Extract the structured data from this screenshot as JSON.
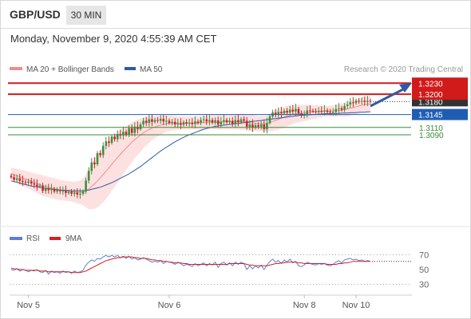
{
  "header": {
    "symbol": "GBP/USD",
    "timeframe": "30 MIN",
    "datetime": "Monday, November 9, 2020 4:55:39 AM CET"
  },
  "legend": {
    "ma20_label": "MA 20 + Bollinger Bands",
    "ma50_label": "MA 50",
    "credit": "Research © 2020 Trading Central",
    "rsi_label": "RSI",
    "rsi_ma_label": "9MA"
  },
  "colors": {
    "resistance": "#d11a1a",
    "support": "#1f5db3",
    "target": "#3a8a3a",
    "bull": "#3f8f3f",
    "bear": "#c62828",
    "ma20": "#f28b8b",
    "ma50": "#2f5aa8",
    "band_fill": "#fde1e1",
    "rsi": "#5b7fd6",
    "rsi_ma": "#d71f1f",
    "last_price_tag": "#333333",
    "arrow": "#2f5aa8"
  },
  "chart_data": [
    {
      "type": "candlestick",
      "name": "price",
      "ylim": [
        1.285,
        1.325
      ],
      "x_ticks": [
        {
          "label": "Nov 5",
          "index": 6
        },
        {
          "label": "Nov 6",
          "index": 55
        },
        {
          "label": "Nov 8",
          "index": 102
        },
        {
          "label": "Nov 10",
          "index": 120
        }
      ],
      "levels": [
        {
          "value": 1.323,
          "label": "1.3230",
          "kind": "resistance"
        },
        {
          "value": 1.32,
          "label": "1.3200",
          "kind": "resistance"
        },
        {
          "value": 1.3145,
          "label": "1.3145",
          "kind": "support"
        },
        {
          "value": 1.311,
          "label": "1.3110",
          "kind": "target"
        },
        {
          "value": 1.309,
          "label": "1.3090",
          "kind": "target"
        }
      ],
      "last_price": {
        "value": 1.318,
        "label": "1.3180"
      },
      "closes": [
        1.2975,
        1.2968,
        1.2972,
        1.2965,
        1.2962,
        1.296,
        1.2963,
        1.2958,
        1.2955,
        1.295,
        1.2952,
        1.2938,
        1.2945,
        1.294,
        1.2943,
        1.2936,
        1.294,
        1.2937,
        1.2938,
        1.2932,
        1.2935,
        1.293,
        1.2933,
        1.2928,
        1.293,
        1.2936,
        1.2966,
        1.2992,
        1.3015,
        1.301,
        1.304,
        1.3035,
        1.306,
        1.3072,
        1.3068,
        1.3085,
        1.3078,
        1.3092,
        1.3088,
        1.3098,
        1.309,
        1.3108,
        1.3095,
        1.3112,
        1.3105,
        1.3118,
        1.3128,
        1.3122,
        1.3132,
        1.3125,
        1.313,
        1.3128,
        1.3133,
        1.3126,
        1.3128,
        1.3122,
        1.3125,
        1.3118,
        1.3121,
        1.3117,
        1.3124,
        1.312,
        1.3123,
        1.3119,
        1.3126,
        1.3122,
        1.313,
        1.3132,
        1.3126,
        1.313,
        1.3123,
        1.3129,
        1.3118,
        1.3126,
        1.313,
        1.3124,
        1.3128,
        1.312,
        1.313,
        1.3124,
        1.3132,
        1.3128,
        1.3112,
        1.3118,
        1.3109,
        1.3116,
        1.3112,
        1.3118,
        1.3105,
        1.3122,
        1.314,
        1.315,
        1.3145,
        1.3152,
        1.3148,
        1.3155,
        1.315,
        1.3158,
        1.3153,
        1.316,
        1.3148,
        1.3142,
        1.3146,
        1.3156,
        1.3155,
        1.3154,
        1.3152,
        1.3155,
        1.3154,
        1.3156,
        1.3152,
        1.315,
        1.3152,
        1.316,
        1.3162,
        1.3158,
        1.3168,
        1.3172,
        1.3178,
        1.3176,
        1.3182,
        1.318,
        1.3182,
        1.3179,
        1.3182,
        1.318
      ],
      "ma20": [
        1.2985,
        1.2982,
        1.2979,
        1.2976,
        1.2973,
        1.297,
        1.2967,
        1.2964,
        1.2961,
        1.2958,
        1.2955,
        1.2952,
        1.295,
        1.2948,
        1.2946,
        1.2944,
        1.2942,
        1.294,
        1.2939,
        1.2938,
        1.2937,
        1.2936,
        1.2935,
        1.2934,
        1.2934,
        1.2935,
        1.2938,
        1.2943,
        1.295,
        1.2957,
        1.2965,
        1.2973,
        1.2982,
        1.2991,
        1.3,
        1.301,
        1.3019,
        1.3028,
        1.3037,
        1.3046,
        1.3054,
        1.3062,
        1.307,
        1.3077,
        1.3083,
        1.3089,
        1.3095,
        1.31,
        1.3104,
        1.3108,
        1.3111,
        1.3114,
        1.3116,
        1.3118,
        1.312,
        1.3121,
        1.3122,
        1.3122,
        1.3122,
        1.3122,
        1.3122,
        1.3122,
        1.3122,
        1.3122,
        1.3122,
        1.3122,
        1.3123,
        1.3123,
        1.3123,
        1.3124,
        1.3124,
        1.3124,
        1.3124,
        1.3124,
        1.3125,
        1.3125,
        1.3125,
        1.3125,
        1.3125,
        1.3125,
        1.3125,
        1.3125,
        1.3124,
        1.3123,
        1.3122,
        1.3121,
        1.312,
        1.312,
        1.312,
        1.3121,
        1.3123,
        1.3126,
        1.3129,
        1.3132,
        1.3135,
        1.3138,
        1.3141,
        1.3143,
        1.3145,
        1.3147,
        1.3148,
        1.3148,
        1.3149,
        1.315,
        1.3151,
        1.3152,
        1.3152,
        1.3153,
        1.3153,
        1.3154,
        1.3154,
        1.3154,
        1.3155,
        1.3155,
        1.3156,
        1.3157,
        1.3158,
        1.316,
        1.3162,
        1.3164,
        1.3166,
        1.3168,
        1.317,
        1.3172,
        1.3173,
        1.3174
      ],
      "band_width": [
        0.0016,
        0.0018,
        0.0019,
        0.002,
        0.0021,
        0.0022,
        0.0023,
        0.0024,
        0.0025,
        0.0026,
        0.0027,
        0.0028,
        0.0028,
        0.0028,
        0.0028,
        0.0028,
        0.0028,
        0.0027,
        0.0027,
        0.0027,
        0.0027,
        0.0027,
        0.0028,
        0.003,
        0.0032,
        0.0036,
        0.0045,
        0.0055,
        0.0062,
        0.0068,
        0.0072,
        0.0074,
        0.0075,
        0.0075,
        0.0074,
        0.0072,
        0.007,
        0.0068,
        0.0066,
        0.0063,
        0.006,
        0.0057,
        0.0054,
        0.0051,
        0.0048,
        0.0045,
        0.0042,
        0.0039,
        0.0036,
        0.0033,
        0.003,
        0.0028,
        0.0026,
        0.0024,
        0.0022,
        0.0021,
        0.002,
        0.0019,
        0.0018,
        0.0018,
        0.0018,
        0.0018,
        0.0018,
        0.0018,
        0.0018,
        0.0018,
        0.0018,
        0.0018,
        0.0018,
        0.0018,
        0.0019,
        0.0019,
        0.002,
        0.002,
        0.002,
        0.002,
        0.002,
        0.002,
        0.0021,
        0.0021,
        0.0022,
        0.0022,
        0.0022,
        0.0022,
        0.0022,
        0.0021,
        0.0021,
        0.0021,
        0.0021,
        0.0022,
        0.0024,
        0.0026,
        0.0027,
        0.0028,
        0.0028,
        0.0028,
        0.0028,
        0.0027,
        0.0026,
        0.0025,
        0.0024,
        0.0023,
        0.0022,
        0.0021,
        0.002,
        0.0019,
        0.0018,
        0.0017,
        0.0016,
        0.0015,
        0.0015,
        0.0015,
        0.0015,
        0.0016,
        0.0017,
        0.0018,
        0.0019,
        0.002,
        0.002,
        0.002,
        0.002,
        0.002,
        0.002,
        0.002,
        0.002,
        0.002
      ],
      "ma50": [
        1.2965,
        1.2963,
        1.2961,
        1.2959,
        1.2957,
        1.2955,
        1.2953,
        1.2951,
        1.295,
        1.2949,
        1.2948,
        1.2946,
        1.2945,
        1.2944,
        1.2943,
        1.2942,
        1.2941,
        1.294,
        1.294,
        1.2939,
        1.2939,
        1.2938,
        1.2938,
        1.2938,
        1.2938,
        1.2938,
        1.2939,
        1.294,
        1.2942,
        1.2944,
        1.2946,
        1.2948,
        1.2951,
        1.2954,
        1.2957,
        1.296,
        1.2964,
        1.2968,
        1.2972,
        1.2976,
        1.298,
        1.2984,
        1.2989,
        1.2994,
        1.2999,
        1.3004,
        1.301,
        1.3016,
        1.3022,
        1.3028,
        1.3034,
        1.304,
        1.3046,
        1.3051,
        1.3056,
        1.3061,
        1.3066,
        1.3071,
        1.3075,
        1.3079,
        1.3083,
        1.3087,
        1.309,
        1.3093,
        1.3096,
        1.3099,
        1.3102,
        1.3105,
        1.3107,
        1.3109,
        1.3111,
        1.3113,
        1.3114,
        1.3115,
        1.3116,
        1.3117,
        1.3118,
        1.3119,
        1.312,
        1.3121,
        1.3122,
        1.3123,
        1.3124,
        1.3125,
        1.3126,
        1.3127,
        1.3128,
        1.3129,
        1.313,
        1.3131,
        1.3132,
        1.3133,
        1.3134,
        1.3135,
        1.3136,
        1.3137,
        1.3138,
        1.3139,
        1.314,
        1.3141,
        1.3142,
        1.3143,
        1.3143,
        1.3144,
        1.3144,
        1.3145,
        1.3145,
        1.3146,
        1.3146,
        1.3147,
        1.3147,
        1.3147,
        1.3148,
        1.3148,
        1.3148,
        1.3149,
        1.3149,
        1.3149,
        1.315,
        1.315,
        1.315,
        1.3151,
        1.3151,
        1.3151,
        1.3152,
        1.3152
      ]
    },
    {
      "type": "line",
      "name": "rsi",
      "ylim": [
        20,
        80
      ],
      "y_ticks": [
        70,
        50,
        30
      ],
      "series": [
        {
          "name": "RSI",
          "values": [
            50,
            49,
            51,
            48,
            50,
            49,
            47,
            49,
            48,
            50,
            47,
            46,
            49,
            44,
            48,
            46,
            47,
            45,
            48,
            46,
            47,
            45,
            48,
            46,
            47,
            49,
            56,
            60,
            63,
            61,
            65,
            64,
            67,
            69,
            67,
            69,
            67,
            69,
            66,
            68,
            65,
            68,
            64,
            66,
            63,
            64,
            66,
            64,
            62,
            60,
            61,
            60,
            62,
            58,
            61,
            60,
            59,
            57,
            60,
            58,
            55,
            57,
            56,
            54,
            58,
            55,
            57,
            59,
            55,
            58,
            56,
            60,
            53,
            58,
            60,
            56,
            59,
            55,
            60,
            57,
            60,
            58,
            50,
            55,
            51,
            55,
            52,
            56,
            50,
            56,
            61,
            64,
            60,
            62,
            58,
            63,
            60,
            64,
            59,
            61,
            55,
            54,
            56,
            60,
            58,
            57,
            56,
            58,
            57,
            58,
            56,
            55,
            57,
            60,
            62,
            59,
            63,
            64,
            65,
            63,
            64,
            62,
            63,
            61,
            62,
            61
          ]
        },
        {
          "name": "9MA",
          "values": [
            52,
            51,
            51,
            50,
            50,
            49,
            49,
            49,
            49,
            49,
            48,
            48,
            48,
            47,
            47,
            47,
            47,
            47,
            47,
            47,
            47,
            46,
            46,
            46,
            46,
            47,
            48,
            50,
            52,
            54,
            56,
            58,
            60,
            62,
            63,
            64,
            65,
            66,
            66,
            67,
            67,
            67,
            67,
            66,
            66,
            65,
            65,
            65,
            64,
            63,
            63,
            62,
            62,
            61,
            61,
            60,
            60,
            59,
            59,
            59,
            58,
            58,
            57,
            57,
            57,
            57,
            57,
            57,
            57,
            57,
            57,
            57,
            57,
            57,
            57,
            57,
            58,
            58,
            58,
            58,
            58,
            58,
            57,
            56,
            56,
            55,
            55,
            55,
            55,
            55,
            56,
            57,
            58,
            58,
            59,
            59,
            60,
            60,
            60,
            60,
            59,
            59,
            58,
            58,
            58,
            58,
            58,
            58,
            58,
            58,
            57,
            57,
            57,
            57,
            58,
            58,
            59,
            59,
            60,
            61,
            61,
            61,
            61,
            61,
            61,
            61
          ]
        }
      ]
    }
  ]
}
